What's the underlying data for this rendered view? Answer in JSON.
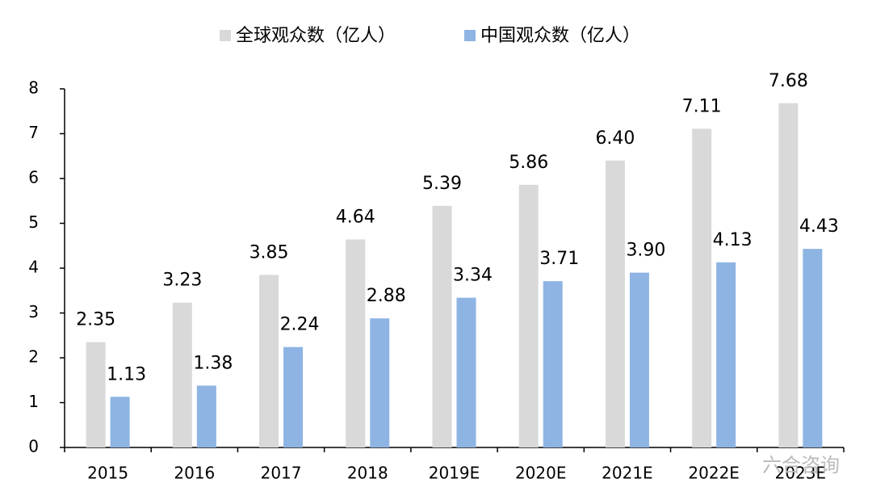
{
  "chart_data": {
    "type": "bar",
    "categories": [
      "2015",
      "2016",
      "2017",
      "2018",
      "2019E",
      "2020E",
      "2021E",
      "2022E",
      "2023E"
    ],
    "series": [
      {
        "name": "全球观众数（亿人）",
        "color": "#d9d9d9",
        "values": [
          2.35,
          3.23,
          3.85,
          4.64,
          5.39,
          5.86,
          6.4,
          7.11,
          7.68
        ],
        "value_labels": [
          "2.35",
          "3.23",
          "3.85",
          "4.64",
          "5.39",
          "5.86",
          "6.40",
          "7.11",
          "7.68"
        ]
      },
      {
        "name": "中国观众数（亿人）",
        "color": "#8eb4e3",
        "values": [
          1.13,
          1.38,
          2.24,
          2.88,
          3.34,
          3.71,
          3.9,
          4.13,
          4.43
        ],
        "value_labels": [
          "1.13",
          "1.38",
          "2.24",
          "2.88",
          "3.34",
          "3.71",
          "3.90",
          "4.13",
          "4.43"
        ]
      }
    ],
    "ylim": [
      0,
      8
    ],
    "yticks": [
      0,
      1,
      2,
      3,
      4,
      5,
      6,
      7,
      8
    ],
    "legend": "top",
    "watermark": "六合咨询"
  }
}
